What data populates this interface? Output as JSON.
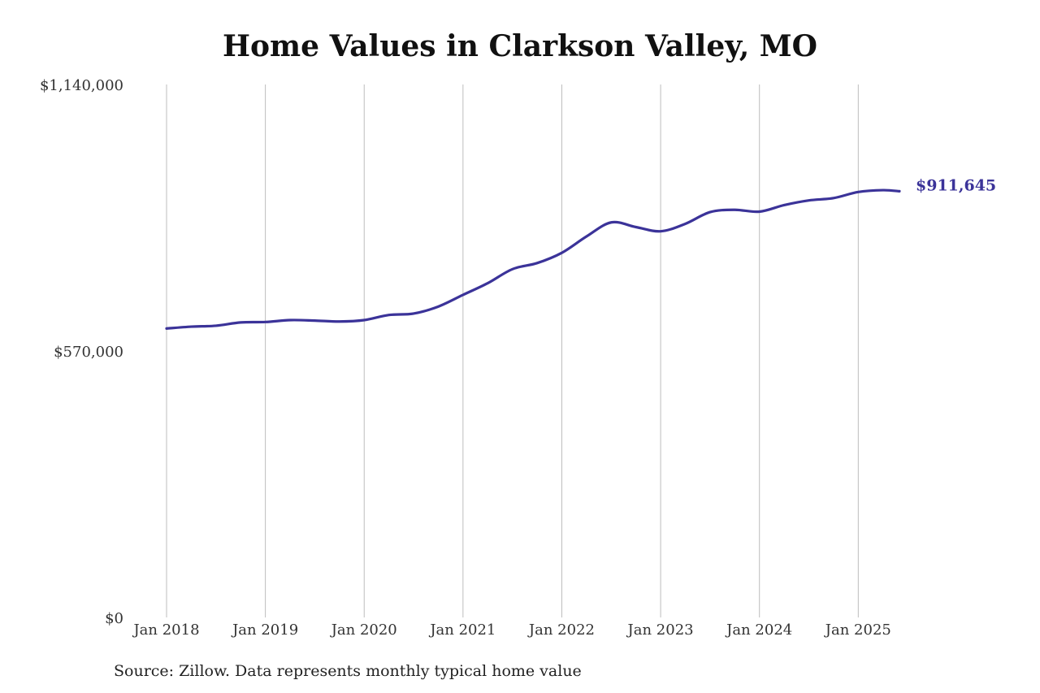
{
  "chart_data": {
    "type": "line",
    "title": "Home Values in Clarkson Valley, MO",
    "source": "Source: Zillow. Data represents monthly typical home value",
    "xlabel": "",
    "ylabel": "",
    "ylim": [
      0,
      1140000
    ],
    "y_ticks": [
      {
        "value": 0,
        "label": "$0"
      },
      {
        "value": 570000,
        "label": "$570,000"
      },
      {
        "value": 1140000,
        "label": "$1,140,000"
      }
    ],
    "x_ticks": [
      {
        "date": "2018-01",
        "label": "Jan 2018"
      },
      {
        "date": "2019-01",
        "label": "Jan 2019"
      },
      {
        "date": "2020-01",
        "label": "Jan 2020"
      },
      {
        "date": "2021-01",
        "label": "Jan 2021"
      },
      {
        "date": "2022-01",
        "label": "Jan 2022"
      },
      {
        "date": "2023-01",
        "label": "Jan 2023"
      },
      {
        "date": "2024-01",
        "label": "Jan 2024"
      },
      {
        "date": "2025-01",
        "label": "Jan 2025"
      }
    ],
    "x_range": [
      "2018-01",
      "2025-06"
    ],
    "grid": "vertical",
    "line_color": "#3b3399",
    "end_label": "$911,645",
    "series": [
      {
        "points": [
          [
            "2018-01",
            618000
          ],
          [
            "2018-04",
            622000
          ],
          [
            "2018-07",
            624000
          ],
          [
            "2018-10",
            631000
          ],
          [
            "2019-01",
            632000
          ],
          [
            "2019-04",
            636000
          ],
          [
            "2019-07",
            635000
          ],
          [
            "2019-10",
            633000
          ],
          [
            "2020-01",
            636000
          ],
          [
            "2020-04",
            647000
          ],
          [
            "2020-07",
            650000
          ],
          [
            "2020-10",
            665000
          ],
          [
            "2021-01",
            690000
          ],
          [
            "2021-04",
            715000
          ],
          [
            "2021-07",
            745000
          ],
          [
            "2021-10",
            758000
          ],
          [
            "2022-01",
            780000
          ],
          [
            "2022-04",
            815000
          ],
          [
            "2022-07",
            845000
          ],
          [
            "2022-10",
            835000
          ],
          [
            "2023-01",
            826000
          ],
          [
            "2023-04",
            842000
          ],
          [
            "2023-07",
            867000
          ],
          [
            "2023-10",
            872000
          ],
          [
            "2024-01",
            868000
          ],
          [
            "2024-04",
            882000
          ],
          [
            "2024-07",
            892000
          ],
          [
            "2024-10",
            897000
          ],
          [
            "2025-01",
            910000
          ],
          [
            "2025-04",
            914000
          ],
          [
            "2025-06",
            911645
          ]
        ]
      }
    ]
  }
}
